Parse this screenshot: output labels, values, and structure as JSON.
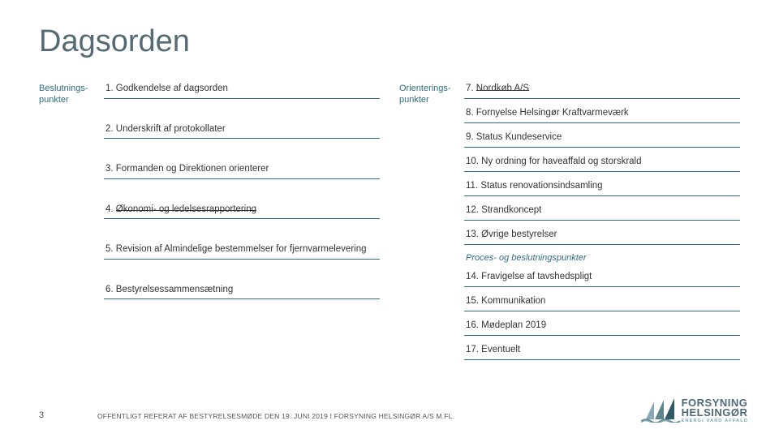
{
  "colors": {
    "title": "#566a73",
    "text": "#333333",
    "rule": "#2f6b7c",
    "labelLeft": "#2f6b7c",
    "labelRight": "#2f6b7c",
    "subheader": "#2f6b7c",
    "pageNumber": "#555555",
    "footer": "#555555",
    "brand": "#4f6b77",
    "brandSub": "#7aa7b3",
    "sailLight": "#8aa8b3",
    "sailMid": "#5f868f",
    "sailDark": "#2f5b66"
  },
  "title": "Dagsorden",
  "left": {
    "label": "Beslutnings-\npunkter",
    "items": [
      {
        "text": "1. Godkendelse af dagsorden",
        "struck": false
      },
      {
        "text": "2. Underskrift af protokollater",
        "struck": false
      },
      {
        "text": "3. Formanden og Direktionen orienterer",
        "struck": false
      },
      {
        "prefix": "4. ",
        "strikeText": "Økonomi- og ledelsesrapportering",
        "struck": true
      },
      {
        "text": "5. Revision af Almindelige bestemmelser for fjernvarmelevering",
        "struck": false
      },
      {
        "text": "6. Bestyrelsessammensætning",
        "struck": false
      }
    ]
  },
  "right": {
    "label": "Orienterings-\npunkter",
    "items": [
      {
        "prefix": "7. ",
        "strikeText": "Nordkøb A/S",
        "struck": true
      },
      {
        "text": "8. Fornyelse Helsingør Kraftvarmeværk",
        "struck": false
      },
      {
        "text": "9. Status Kundeservice",
        "struck": false
      },
      {
        "text": "10. Ny ordning for haveaffald og storskrald",
        "struck": false
      },
      {
        "text": "11. Status renovationsindsamling",
        "struck": false
      },
      {
        "text": "12. Strandkoncept",
        "struck": false
      },
      {
        "text": "13. Øvrige bestyrelser",
        "struck": false
      }
    ],
    "subheader": "Proces- og beslutningspunkter",
    "items2": [
      {
        "text": "14. Fravigelse af tavshedspligt",
        "struck": false
      },
      {
        "text": "15. Kommunikation",
        "struck": false
      },
      {
        "text": "16. Mødeplan 2019",
        "struck": false
      },
      {
        "text": "17. Eventuelt",
        "struck": false
      }
    ]
  },
  "pageNumber": "3",
  "footer": "OFFENTLIGT REFERAT AF BESTYRELSESMØDE DEN 19. JUNI 2019 I FORSYNING HELSINGØR A/S M.FL.",
  "brand": {
    "line1": "FORSYNING",
    "line2": "HELSINGØR",
    "sub": "ENERGI VAND AFFALD"
  }
}
